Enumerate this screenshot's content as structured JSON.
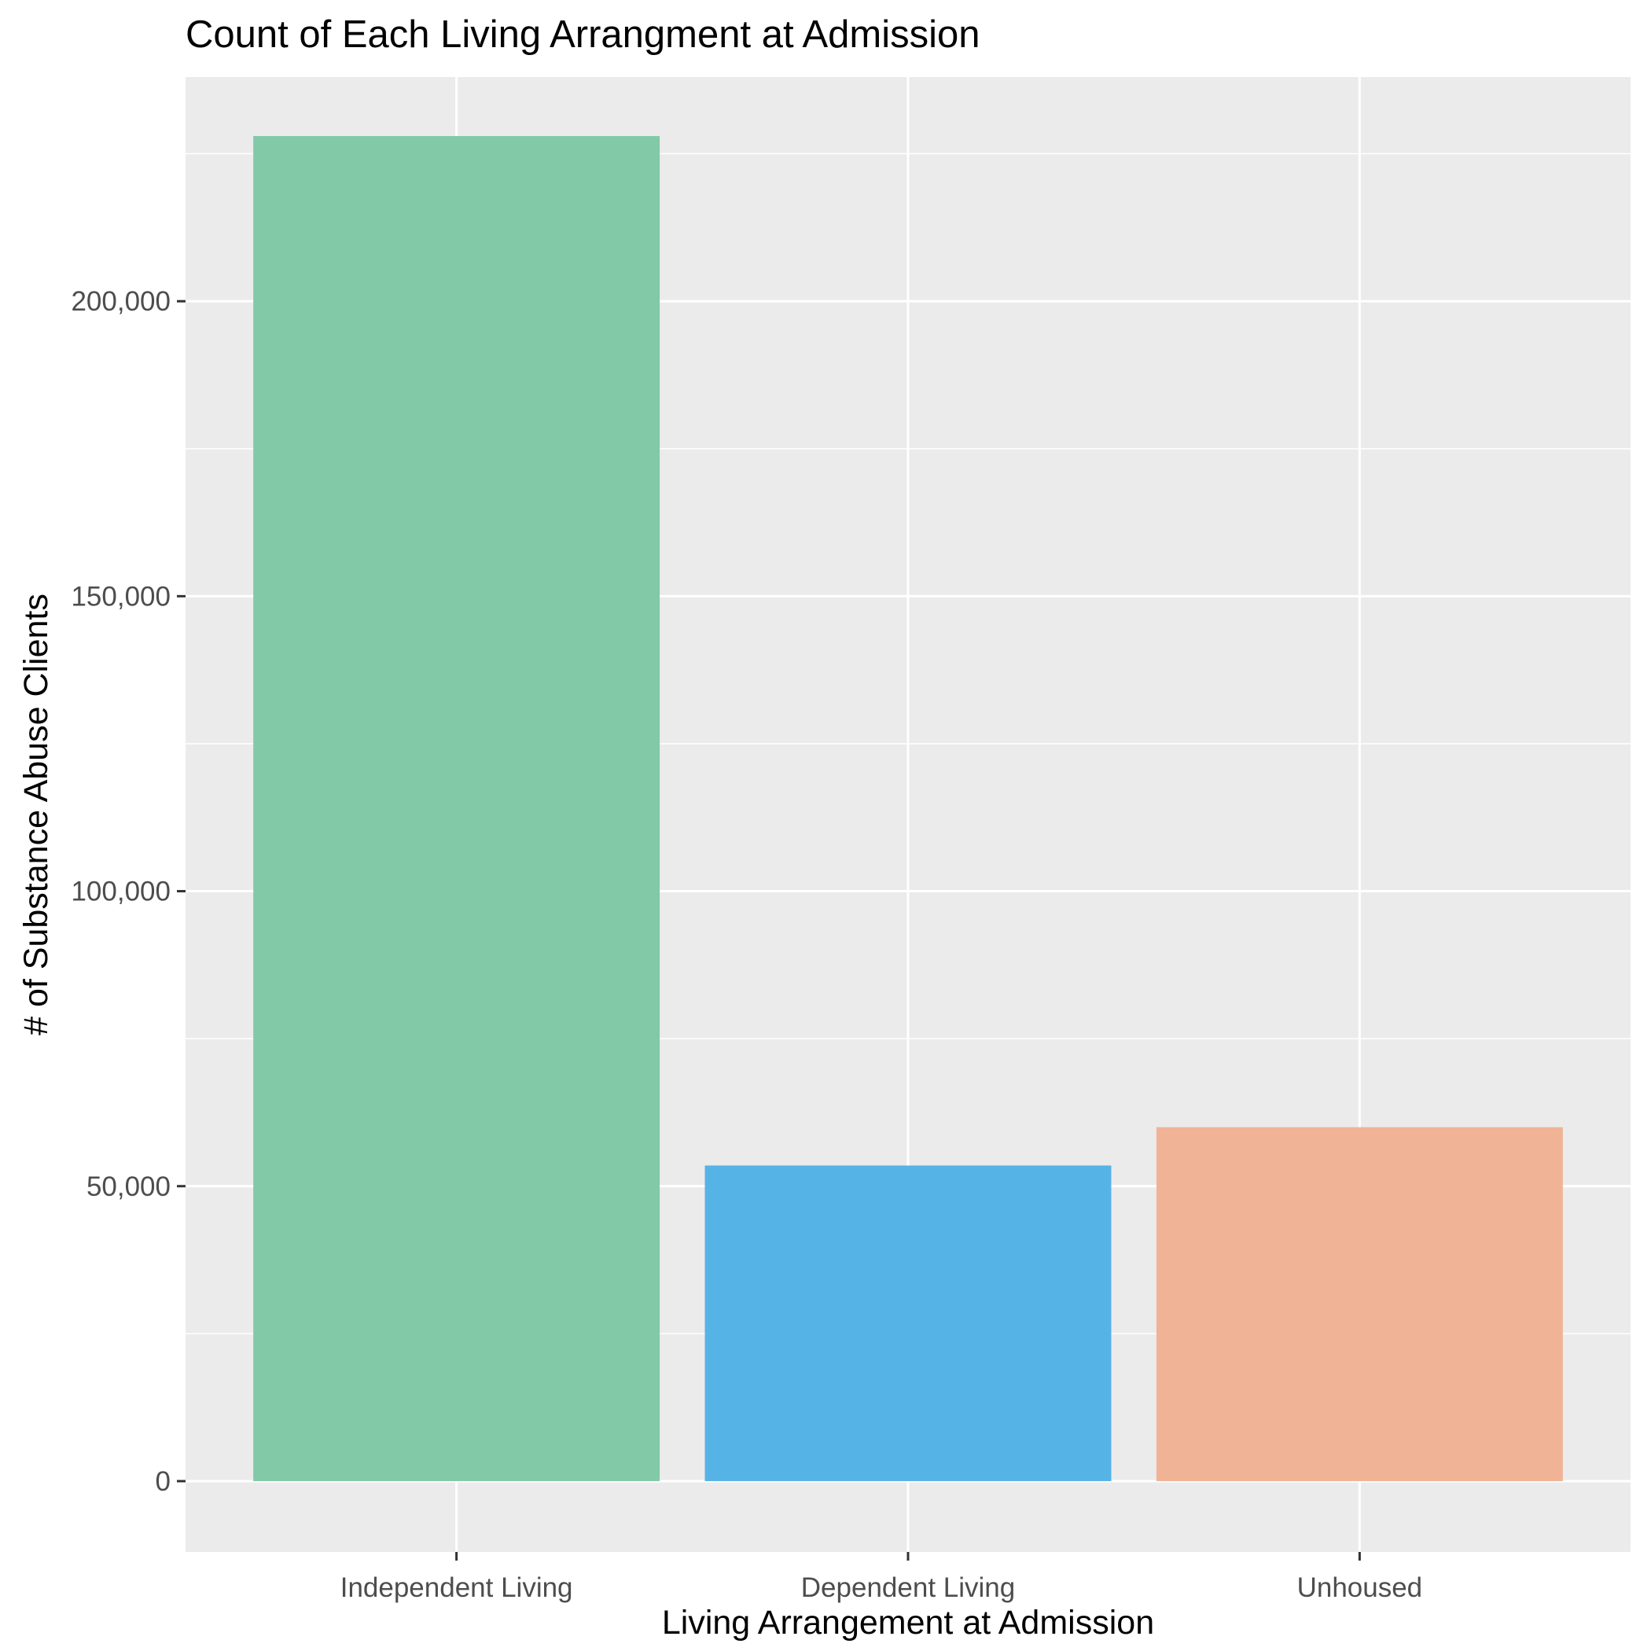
{
  "chart_data": {
    "type": "bar",
    "title": "Count of Each Living Arrangment at Admission",
    "xlabel": "Living Arrangement at Admission",
    "ylabel": "# of Substance Abuse Clients",
    "categories": [
      "Independent Living",
      "Dependent Living",
      "Unhoused"
    ],
    "values": [
      228000,
      53500,
      60000
    ],
    "colors": [
      "#82c9a8",
      "#56b3e6",
      "#f0b395"
    ],
    "ylim": [
      -12000,
      238000
    ],
    "y_ticks": [
      0,
      50000,
      100000,
      150000,
      200000
    ],
    "y_tick_labels": [
      "0",
      "50,000",
      "100,000",
      "150,000",
      "200,000"
    ],
    "grid": true,
    "panel_background": "#ebebeb",
    "grid_color": "#ffffff",
    "legend": "none"
  }
}
